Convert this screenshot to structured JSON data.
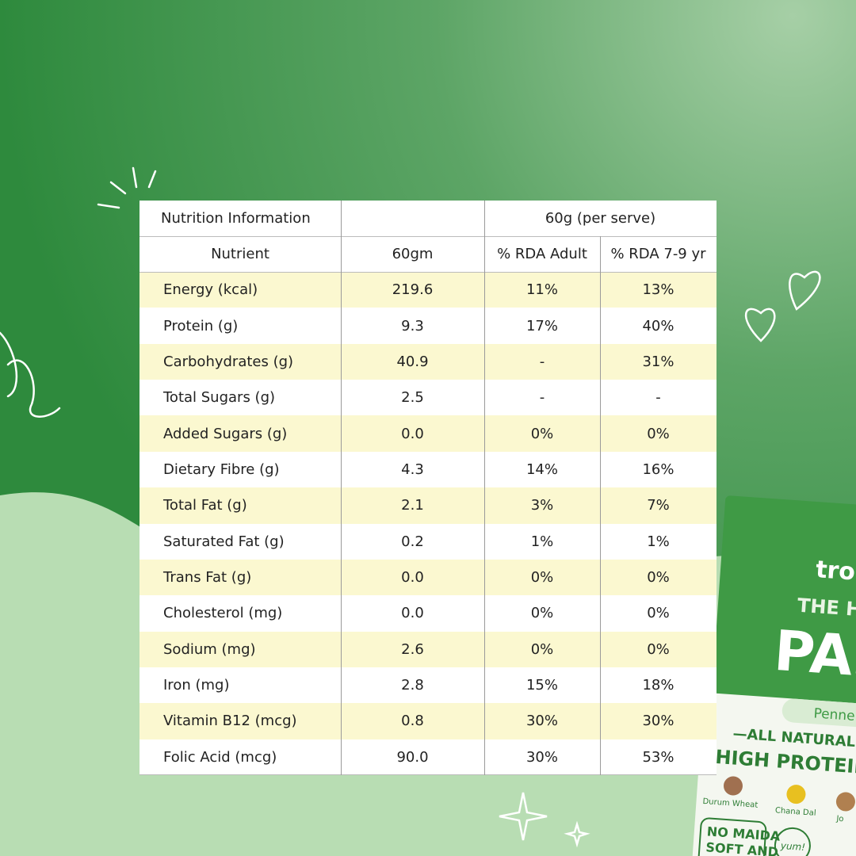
{
  "table": {
    "title": "Nutrition Information",
    "serving": "60g (per serve)",
    "columns": [
      "Nutrient",
      "60gm",
      "% RDA Adult",
      "% RDA 7-9 yr"
    ],
    "rows": [
      [
        "Energy (kcal)",
        "219.6",
        "11%",
        "13%"
      ],
      [
        "Protein (g)",
        "9.3",
        "17%",
        "40%"
      ],
      [
        "Carbohydrates (g)",
        "40.9",
        "-",
        "31%"
      ],
      [
        "Total Sugars (g)",
        "2.5",
        "-",
        "-"
      ],
      [
        "Added Sugars (g)",
        "0.0",
        "0%",
        "0%"
      ],
      [
        "Dietary Fibre (g)",
        "4.3",
        "14%",
        "16%"
      ],
      [
        "Total Fat (g)",
        "2.1",
        "3%",
        "7%"
      ],
      [
        "Saturated Fat (g)",
        "0.2",
        "1%",
        "1%"
      ],
      [
        "Trans Fat (g)",
        "0.0",
        "0%",
        "0%"
      ],
      [
        "Cholesterol (mg)",
        "0.0",
        "0%",
        "0%"
      ],
      [
        "Sodium (mg)",
        "2.6",
        "0%",
        "0%"
      ],
      [
        "Iron (mg)",
        "2.8",
        "15%",
        "18%"
      ],
      [
        "Vitamin B12 (mcg)",
        "0.8",
        "30%",
        "30%"
      ],
      [
        "Folic Acid (mcg)",
        "90.0",
        "30%",
        "53%"
      ]
    ]
  },
  "package": {
    "brand": "troo",
    "tagline": "THE HEA",
    "name": "PAS",
    "variant": "Penne",
    "banner": "—ALL NATURAL ING",
    "claim": "HIGH PROTEIN MI",
    "ingredients": [
      "Durum Wheat",
      "Chana Dal",
      "Jo"
    ],
    "badge": "NO MAIDA",
    "badge_sub": "SOFT AND",
    "sticker": "yum!"
  }
}
